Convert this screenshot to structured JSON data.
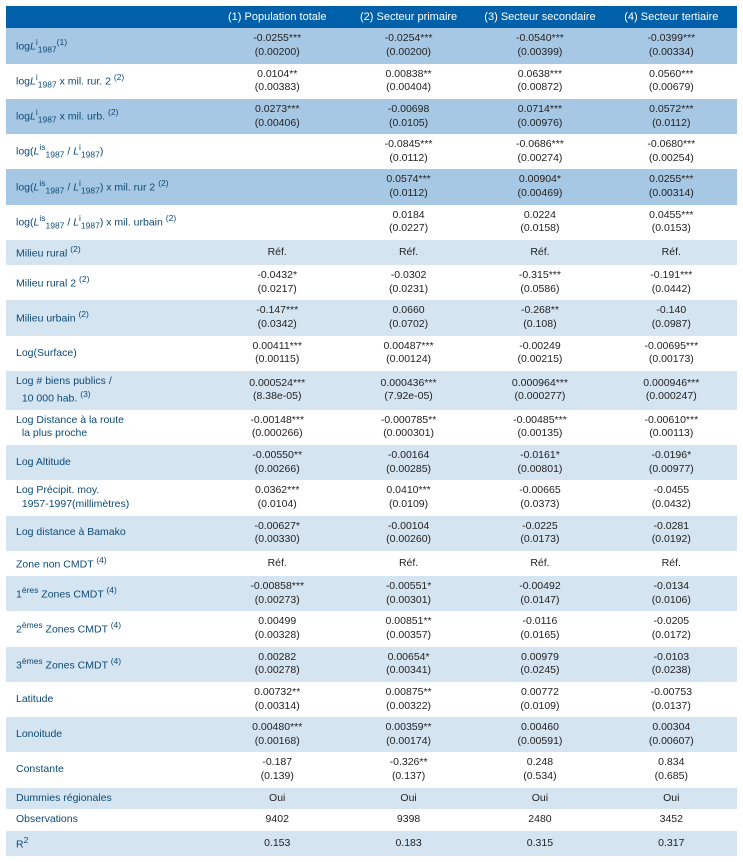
{
  "columns": [
    {
      "num": "(1)",
      "label": "Population totale"
    },
    {
      "num": "(2)",
      "label": "Secteur primaire"
    },
    {
      "num": "(3)",
      "label": "Secteur secondaire"
    },
    {
      "num": "(4)",
      "label": "Secteur tertiaire"
    }
  ],
  "colors": {
    "header_bg": "#0061aa",
    "header_fg": "#ffffff",
    "band_dark": "#a7c8e4",
    "band_mid": "#d5e4f1",
    "band_light": "#ffffff",
    "label_fg": "#0d4a76",
    "value_fg": "#222222"
  },
  "rows": [
    {
      "label_html": "log<span class='ital'>L</span><span class='sup'>i</span><span class='sub'>1987</span><span class='sup'>(1)</span>",
      "band": "dark",
      "cells": [
        {
          "est": "-0.0255***",
          "se": "(0.00200)"
        },
        {
          "est": "-0.0254***",
          "se": "(0.00200)"
        },
        {
          "est": "-0.0540***",
          "se": "(0.00399)"
        },
        {
          "est": "-0.0399***",
          "se": "(0.00334)"
        }
      ]
    },
    {
      "label_html": "log<span class='ital'>L</span><span class='sup'>i</span><span class='sub'>1987</span> x mil. rur. 2 <span class='sup'>(2)</span>",
      "band": "light",
      "cells": [
        {
          "est": "0.0104**",
          "se": "(0.00383)"
        },
        {
          "est": "0.00838**",
          "se": "(0.00404)"
        },
        {
          "est": "0.0638***",
          "se": "(0.00872)"
        },
        {
          "est": "0.0560***",
          "se": "(0.00679)"
        }
      ]
    },
    {
      "label_html": "log<span class='ital'>L</span><span class='sup'>i</span><span class='sub'>1987</span> x mil. urb. <span class='sup'>(2)</span>",
      "band": "dark",
      "cells": [
        {
          "est": "0.0273***",
          "se": "(0.00406)"
        },
        {
          "est": "-0.00698",
          "se": "(0.0105)"
        },
        {
          "est": "0.0714***",
          "se": "(0.00976)"
        },
        {
          "est": "0.0572***",
          "se": "(0.0112)"
        }
      ]
    },
    {
      "label_html": "log(<span class='ital'>L</span><span class='sup'>is</span><span class='sub'>1987</span> / <span class='ital'>L</span><span class='sup'>i</span><span class='sub'>1987</span>)",
      "band": "light",
      "cells": [
        {
          "est": "",
          "se": ""
        },
        {
          "est": "-0.0845***",
          "se": "(0.0112)"
        },
        {
          "est": "-0.0686***",
          "se": "(0.00274)"
        },
        {
          "est": "-0.0680***",
          "se": "(0.00254)"
        }
      ]
    },
    {
      "label_html": "log(<span class='ital'>L</span><span class='sup'>is</span><span class='sub'>1987</span> / <span class='ital'>L</span><span class='sup'>i</span><span class='sub'>1987</span>) x mil. rur 2 <span class='sup'>(2)</span>",
      "band": "dark",
      "cells": [
        {
          "est": "",
          "se": ""
        },
        {
          "est": "0.0574***",
          "se": "(0.0112)"
        },
        {
          "est": "0.00904*",
          "se": "(0.00469)"
        },
        {
          "est": "0.0255***",
          "se": "(0.00314)"
        }
      ]
    },
    {
      "label_html": "log(<span class='ital'>L</span><span class='sup'>is</span><span class='sub'>1987</span> / <span class='ital'>L</span><span class='sup'>i</span><span class='sub'>1987</span>) x mil. urbain <span class='sup'>(2)</span>",
      "band": "light",
      "cells": [
        {
          "est": "",
          "se": ""
        },
        {
          "est": "0.0184",
          "se": "(0.0227)"
        },
        {
          "est": "0.0224",
          "se": "(0.0158)"
        },
        {
          "est": "0.0455***",
          "se": "(0.0153)"
        }
      ]
    },
    {
      "label_html": "Milieu rural <span class='sup'>(2)</span>",
      "band": "mid",
      "single": true,
      "cells": [
        {
          "est": "Réf."
        },
        {
          "est": "Réf."
        },
        {
          "est": "Réf."
        },
        {
          "est": "Réf."
        }
      ]
    },
    {
      "label_html": "Milieu rural 2 <span class='sup'>(2)</span>",
      "band": "light",
      "cells": [
        {
          "est": "-0.0432*",
          "se": "(0.0217)"
        },
        {
          "est": "-0.0302",
          "se": "(0.0231)"
        },
        {
          "est": "-0.315***",
          "se": "(0.0586)"
        },
        {
          "est": "-0.191***",
          "se": "(0.0442)"
        }
      ]
    },
    {
      "label_html": "Milieu urbain <span class='sup'>(2)</span>",
      "band": "mid",
      "cells": [
        {
          "est": "-0.147***",
          "se": "(0.0342)"
        },
        {
          "est": "0.0660",
          "se": "(0.0702)"
        },
        {
          "est": "-0.268**",
          "se": "(0.108)"
        },
        {
          "est": "-0.140",
          "se": "(0.0987)"
        }
      ]
    },
    {
      "label_html": "Log(Surface)",
      "band": "light",
      "cells": [
        {
          "est": "0.00411***",
          "se": "(0.00115)"
        },
        {
          "est": "0.00487***",
          "se": "(0.00124)"
        },
        {
          "est": "-0.00249",
          "se": "(0.00215)"
        },
        {
          "est": "-0.00695***",
          "se": "(0.00173)"
        }
      ]
    },
    {
      "label_html": "Log # biens publics /<br>&nbsp;&nbsp;10 000 hab. <span class='sup'>(3)</span>",
      "band": "mid",
      "cells": [
        {
          "est": "0.000524***",
          "se": "(8.38e-05)"
        },
        {
          "est": "0.000436***",
          "se": "(7.92e-05)"
        },
        {
          "est": "0.000964***",
          "se": "(0.000277)"
        },
        {
          "est": "0.000946***",
          "se": "(0.000247)"
        }
      ]
    },
    {
      "label_html": "Log Distance à la route<br>&nbsp;&nbsp;la plus proche",
      "band": "light",
      "cells": [
        {
          "est": "-0.00148***",
          "se": "(0.000266)"
        },
        {
          "est": "-0.000785**",
          "se": "(0.000301)"
        },
        {
          "est": "-0.00485***",
          "se": "(0.00135)"
        },
        {
          "est": "-0.00610***",
          "se": "(0.00113)"
        }
      ]
    },
    {
      "label_html": "Log Altitude",
      "band": "mid",
      "cells": [
        {
          "est": "-0.00550**",
          "se": "(0.00266)"
        },
        {
          "est": "-0.00164",
          "se": "(0.00285)"
        },
        {
          "est": "-0.0161*",
          "se": "(0.00801)"
        },
        {
          "est": "-0.0196*",
          "se": "(0.00977)"
        }
      ]
    },
    {
      "label_html": "Log Précipit. moy.<br>&nbsp;&nbsp;1957-1997(millimètres)",
      "band": "light",
      "cells": [
        {
          "est": "0.0362***",
          "se": "(0.0104)"
        },
        {
          "est": "0.0410***",
          "se": "(0.0109)"
        },
        {
          "est": "-0.00665",
          "se": "(0.0373)"
        },
        {
          "est": "-0.0455",
          "se": "(0.0432)"
        }
      ]
    },
    {
      "label_html": "Log distance à Bamako",
      "band": "mid",
      "cells": [
        {
          "est": "-0.00627*",
          "se": "(0.00330)"
        },
        {
          "est": "-0.00104",
          "se": "(0.00260)"
        },
        {
          "est": "-0.0225",
          "se": "(0.0173)"
        },
        {
          "est": "-0.0281",
          "se": "(0.0192)"
        }
      ]
    },
    {
      "label_html": "Zone non CMDT <span class='sup'>(4)</span>",
      "band": "light",
      "single": true,
      "cells": [
        {
          "est": "Réf."
        },
        {
          "est": "Réf."
        },
        {
          "est": "Réf."
        },
        {
          "est": "Réf."
        }
      ]
    },
    {
      "label_html": "1<span class='sup'>ères</span> Zones CMDT <span class='sup'>(4)</span>",
      "band": "mid",
      "cells": [
        {
          "est": "-0.00858***",
          "se": "(0.00273)"
        },
        {
          "est": "-0.00551*",
          "se": "(0.00301)"
        },
        {
          "est": "-0.00492",
          "se": "(0.0147)"
        },
        {
          "est": "-0.0134",
          "se": "(0.0106)"
        }
      ]
    },
    {
      "label_html": "2<span class='sup'>èmes</span> Zones CMDT <span class='sup'>(4)</span>",
      "band": "light",
      "cells": [
        {
          "est": "0.00499",
          "se": "(0.00328)"
        },
        {
          "est": "0.00851**",
          "se": "(0.00357)"
        },
        {
          "est": "-0.0116",
          "se": "(0.0165)"
        },
        {
          "est": "-0.0205",
          "se": "(0.0172)"
        }
      ]
    },
    {
      "label_html": "3<span class='sup'>èmes</span> Zones CMDT <span class='sup'>(4)</span>",
      "band": "mid",
      "cells": [
        {
          "est": "0.00282",
          "se": "(0.00278)"
        },
        {
          "est": "0.00654*",
          "se": "(0.00341)"
        },
        {
          "est": "0.00979",
          "se": "(0.0245)"
        },
        {
          "est": "-0.0103",
          "se": "(0.0238)"
        }
      ]
    },
    {
      "label_html": "Latitude",
      "band": "light",
      "cells": [
        {
          "est": "0.00732**",
          "se": "(0.00314)"
        },
        {
          "est": "0.00875**",
          "se": "(0.00322)"
        },
        {
          "est": "0.00772",
          "se": "(0.0109)"
        },
        {
          "est": "-0.00753",
          "se": "(0.0137)"
        }
      ]
    },
    {
      "label_html": "Lonoitude",
      "band": "mid",
      "cells": [
        {
          "est": "0.00480***",
          "se": "(0.00168)"
        },
        {
          "est": "0.00359**",
          "se": "(0.00174)"
        },
        {
          "est": "0.00460",
          "se": "(0.00591)"
        },
        {
          "est": "0.00304",
          "se": "(0.00607)"
        }
      ]
    },
    {
      "label_html": "Constante",
      "band": "light",
      "cells": [
        {
          "est": "-0.187",
          "se": "(0.139)"
        },
        {
          "est": "-0.326**",
          "se": "(0.137)"
        },
        {
          "est": "0.248",
          "se": "(0.534)"
        },
        {
          "est": "0.834",
          "se": "(0.685)"
        }
      ]
    },
    {
      "label_html": "Dummies régionales",
      "band": "mid",
      "single": true,
      "cells": [
        {
          "est": "Oui"
        },
        {
          "est": "Oui"
        },
        {
          "est": "Oui"
        },
        {
          "est": "Oui"
        }
      ]
    },
    {
      "label_html": "Observations",
      "band": "light",
      "single": true,
      "cells": [
        {
          "est": "9402"
        },
        {
          "est": "9398"
        },
        {
          "est": "2480"
        },
        {
          "est": "3452"
        }
      ]
    },
    {
      "label_html": "R<span class='sup'>2</span>",
      "band": "mid",
      "single": true,
      "cells": [
        {
          "est": "0.153"
        },
        {
          "est": "0.183"
        },
        {
          "est": "0.315"
        },
        {
          "est": "0.317"
        }
      ]
    }
  ]
}
